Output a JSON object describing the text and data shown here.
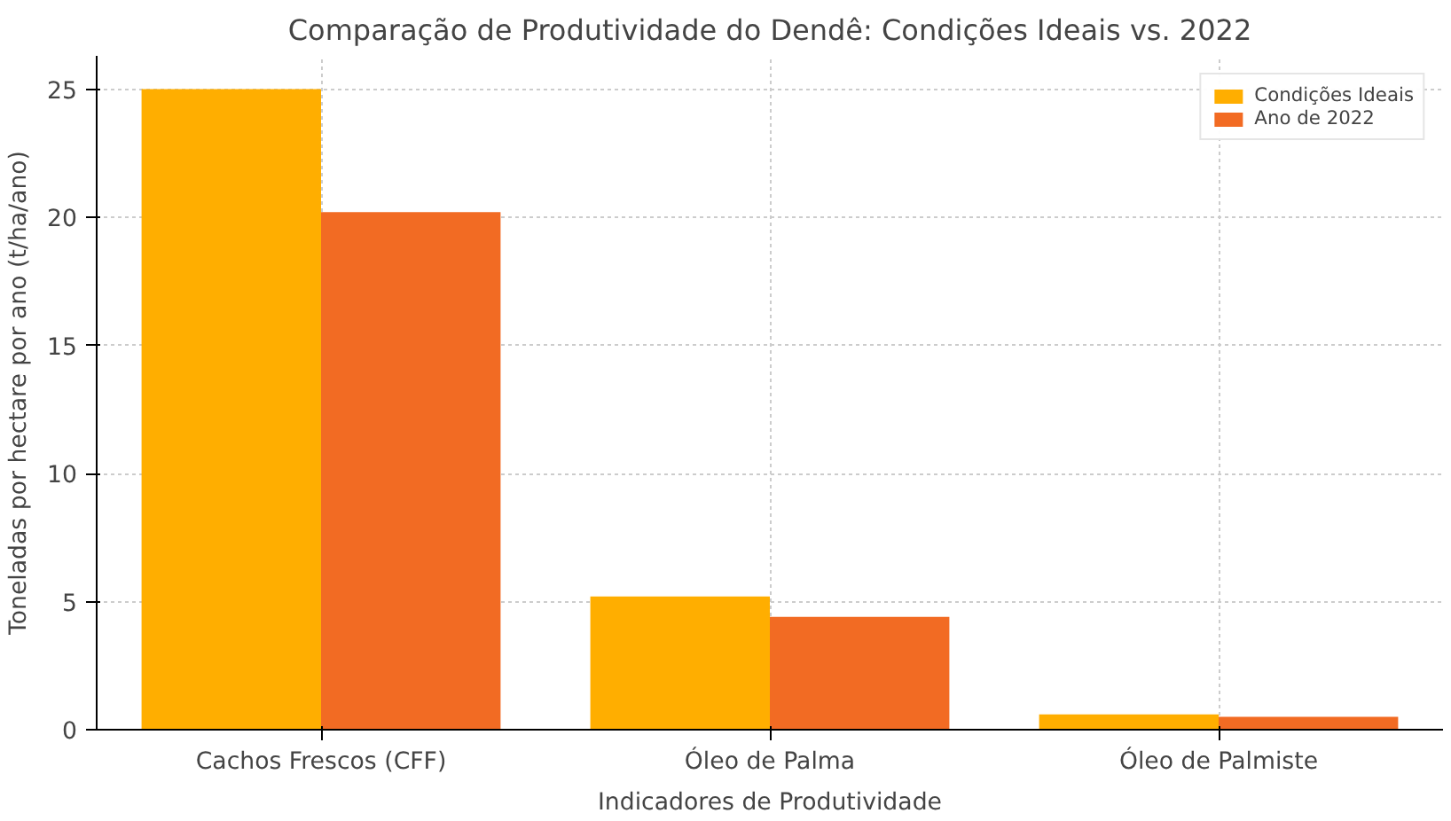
{
  "chart_data": {
    "type": "bar",
    "title": "Comparação de Produtividade do Dendê: Condições Ideais vs. 2022",
    "xlabel": "Indicadores de Produtividade",
    "ylabel": "Toneladas por hectare por ano (t/ha/ano)",
    "categories": [
      "Cachos Frescos (CFF)",
      "Óleo de Palma",
      "Óleo de Palmiste"
    ],
    "series": [
      {
        "name": "Condições Ideais",
        "color": "#ffae00",
        "values": [
          25,
          5.2,
          0.6
        ]
      },
      {
        "name": "Ano de 2022",
        "color": "#f26b23",
        "values": [
          20.2,
          4.4,
          0.5
        ]
      }
    ],
    "ylim": [
      0,
      26.3
    ],
    "yticks": [
      0,
      5,
      10,
      15,
      20,
      25
    ],
    "grid": true,
    "legend": "top right"
  }
}
